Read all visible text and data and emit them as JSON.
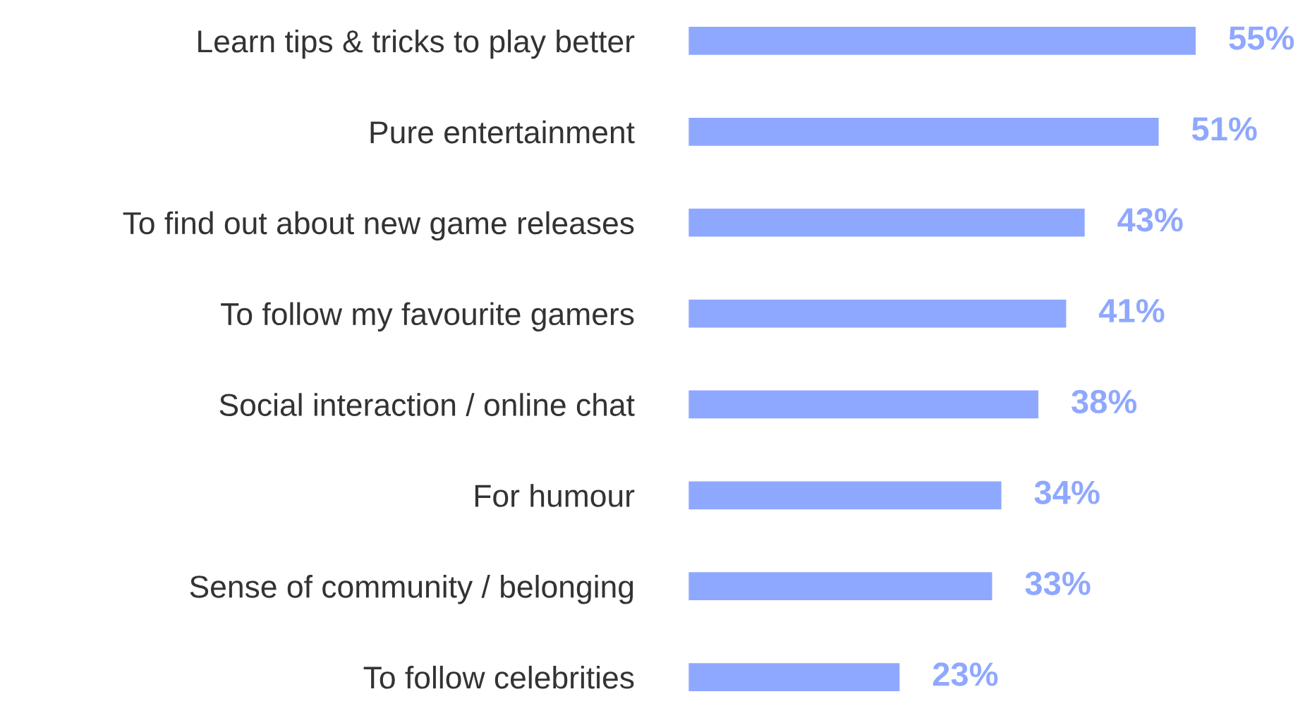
{
  "chart_data": {
    "type": "bar",
    "orientation": "horizontal",
    "categories": [
      "Learn tips & tricks to play better",
      "Pure entertainment",
      "To find out about new game releases",
      "To follow my favourite gamers",
      "Social interaction / online chat",
      "For humour",
      "Sense of community / belonging",
      "To follow celebrities"
    ],
    "values": [
      55,
      51,
      43,
      41,
      38,
      34,
      33,
      23
    ],
    "value_labels": [
      "55%",
      "51%",
      "43%",
      "41%",
      "38%",
      "34%",
      "33%",
      "23%"
    ],
    "color": "#8fa8ff"
  }
}
